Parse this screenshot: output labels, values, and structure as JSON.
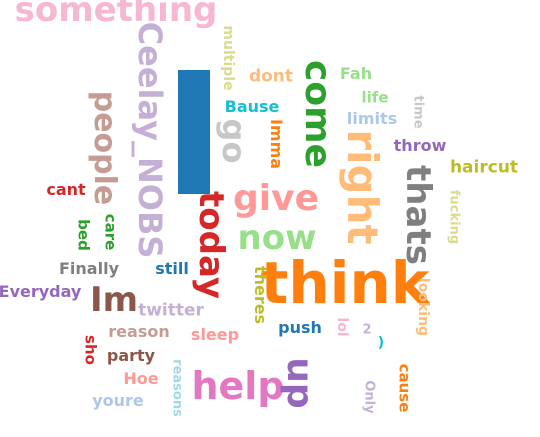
{
  "background": "#ffffff",
  "words": [
    {
      "text": "something",
      "color": "#f7b6d2",
      "vertical": false
    },
    {
      "text": "Ceelay_NOBS",
      "color": "#c5b0d5",
      "vertical": true
    },
    {
      "text": "",
      "color": "#1f77b4",
      "vertical": true
    },
    {
      "text": "multiple",
      "color": "#dbdb8d",
      "vertical": true
    },
    {
      "text": "dont",
      "color": "#ffbb78",
      "vertical": false
    },
    {
      "text": "come",
      "color": "#2ca02c",
      "vertical": true
    },
    {
      "text": "Fah",
      "color": "#98df8a",
      "vertical": false
    },
    {
      "text": "life",
      "color": "#98df8a",
      "vertical": false
    },
    {
      "text": "people",
      "color": "#c49c94",
      "vertical": true
    },
    {
      "text": "Bause",
      "color": "#17becf",
      "vertical": false
    },
    {
      "text": "go",
      "color": "#c7c7c7",
      "vertical": true
    },
    {
      "text": "limits",
      "color": "#aec7e8",
      "vertical": false
    },
    {
      "text": "time",
      "color": "#c7c7c7",
      "vertical": true
    },
    {
      "text": "Imma",
      "color": "#ff7f0e",
      "vertical": true
    },
    {
      "text": "right",
      "color": "#ffbb78",
      "vertical": true
    },
    {
      "text": "throw",
      "color": "#9467bd",
      "vertical": false
    },
    {
      "text": "haircut",
      "color": "#bcbd22",
      "vertical": false
    },
    {
      "text": "cant",
      "color": "#d62728",
      "vertical": false
    },
    {
      "text": "give",
      "color": "#ff9896",
      "vertical": false
    },
    {
      "text": "thats",
      "color": "#7f7f7f",
      "vertical": true
    },
    {
      "text": "fucking",
      "color": "#dbdb8d",
      "vertical": true
    },
    {
      "text": "bed",
      "color": "#2ca02c",
      "vertical": true
    },
    {
      "text": "care",
      "color": "#2ca02c",
      "vertical": true
    },
    {
      "text": "today",
      "color": "#d62728",
      "vertical": true
    },
    {
      "text": "now",
      "color": "#98df8a",
      "vertical": false
    },
    {
      "text": "Finally",
      "color": "#7f7f7f",
      "vertical": false
    },
    {
      "text": "still",
      "color": "#1f77b4",
      "vertical": false
    },
    {
      "text": "think",
      "color": "#ff7f0e",
      "vertical": false
    },
    {
      "text": "Everyday",
      "color": "#9467bd",
      "vertical": false
    },
    {
      "text": "Im",
      "color": "#8c564b",
      "vertical": false
    },
    {
      "text": "theres",
      "color": "#bcbd22",
      "vertical": true
    },
    {
      "text": "looking",
      "color": "#ffbb78",
      "vertical": true
    },
    {
      "text": "twitter",
      "color": "#c5b0d5",
      "vertical": false
    },
    {
      "text": "push",
      "color": "#1f77b4",
      "vertical": false
    },
    {
      "text": "lol",
      "color": "#f7b6d2",
      "vertical": true
    },
    {
      "text": "2",
      "color": "#c5b0d5",
      "vertical": false
    },
    {
      "text": "reason",
      "color": "#c49c94",
      "vertical": false
    },
    {
      "text": "sleep",
      "color": "#ff9896",
      "vertical": false
    },
    {
      "text": ")",
      "color": "#17becf",
      "vertical": false
    },
    {
      "text": "sho",
      "color": "#d62728",
      "vertical": true
    },
    {
      "text": "party",
      "color": "#8c564b",
      "vertical": false
    },
    {
      "text": "reasons",
      "color": "#9edae5",
      "vertical": true
    },
    {
      "text": "help",
      "color": "#e377c2",
      "vertical": false
    },
    {
      "text": "up",
      "color": "#9467bd",
      "vertical": true
    },
    {
      "text": "cause",
      "color": "#ff7f0e",
      "vertical": true
    },
    {
      "text": "Hoe",
      "color": "#ff9896",
      "vertical": false
    },
    {
      "text": "Only",
      "color": "#c5b0d5",
      "vertical": true
    },
    {
      "text": "youre",
      "color": "#aec7e8",
      "vertical": false
    }
  ]
}
